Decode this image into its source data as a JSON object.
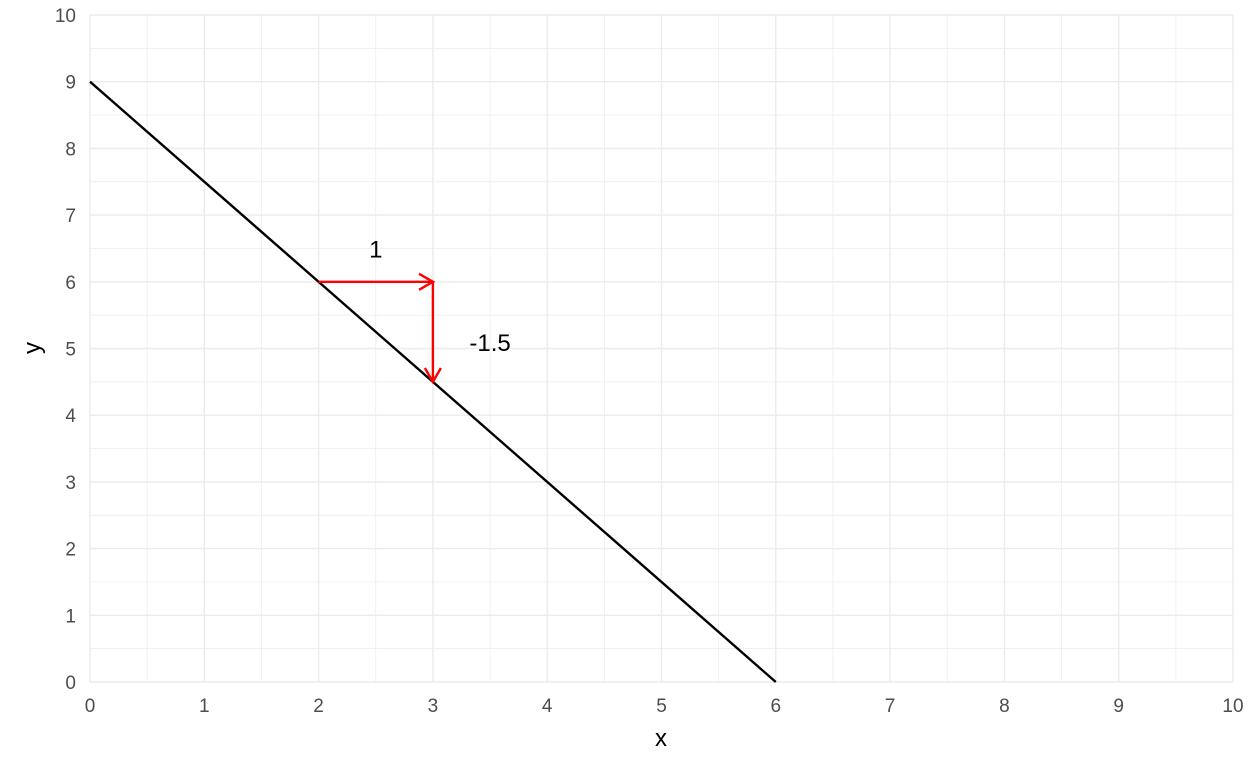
{
  "chart_data": {
    "type": "line",
    "xlabel": "x",
    "ylabel": "y",
    "xlim": [
      0,
      10
    ],
    "ylim": [
      0,
      10
    ],
    "x_ticks": [
      "0",
      "1",
      "2",
      "3",
      "4",
      "5",
      "6",
      "7",
      "8",
      "9",
      "10"
    ],
    "y_ticks": [
      "0",
      "1",
      "2",
      "3",
      "4",
      "5",
      "6",
      "7",
      "8",
      "9",
      "10"
    ],
    "grid": true,
    "minor_grid_step": 0.5,
    "series": [
      {
        "points": [
          [
            0,
            9
          ],
          [
            6,
            0
          ]
        ],
        "color": "#000000"
      }
    ],
    "arrows": [
      {
        "from": [
          2,
          6
        ],
        "to": [
          3,
          6
        ],
        "color": "#ff0000"
      },
      {
        "from": [
          3,
          6
        ],
        "to": [
          3,
          4.5
        ],
        "color": "#ff0000"
      }
    ],
    "annotations": [
      {
        "text": "1",
        "x": 2.5,
        "y": 6.5
      },
      {
        "text": "-1.5",
        "x": 3.5,
        "y": 5.1
      }
    ]
  }
}
